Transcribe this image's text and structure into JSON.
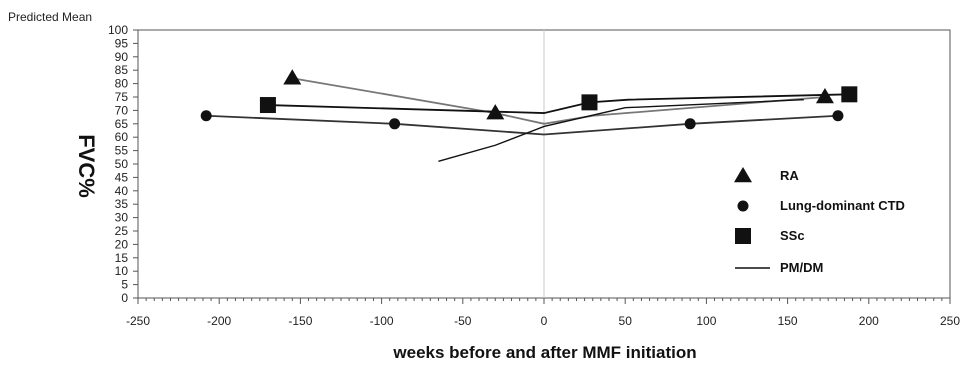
{
  "chart_data": {
    "type": "line",
    "top_label": "Predicted Mean",
    "ylabel": "FVC%",
    "xlabel": "weeks before and after MMF initiation",
    "xlim": [
      -250,
      250
    ],
    "ylim": [
      0,
      100
    ],
    "x_ticks": [
      -250,
      -200,
      -150,
      -100,
      -50,
      0,
      50,
      100,
      150,
      200,
      250
    ],
    "y_ticks": [
      0,
      5,
      10,
      15,
      20,
      25,
      30,
      35,
      40,
      45,
      50,
      55,
      60,
      65,
      70,
      75,
      80,
      85,
      90,
      95,
      100
    ],
    "reference_line_x": 0,
    "legend_position": "right",
    "series": [
      {
        "name": "RA",
        "marker": "triangle",
        "color": "#111111",
        "line_color": "#777777",
        "points": [
          [
            -155,
            82
          ],
          [
            -30,
            69
          ],
          [
            0,
            65
          ],
          [
            30,
            68
          ],
          [
            173,
            75
          ]
        ],
        "marker_points": [
          [
            -155,
            82
          ],
          [
            -30,
            69
          ],
          [
            173,
            75
          ]
        ]
      },
      {
        "name": "Lung-dominant CTD",
        "marker": "circle",
        "color": "#111111",
        "line_color": "#333333",
        "points": [
          [
            -208,
            68
          ],
          [
            -92,
            65
          ],
          [
            0,
            61
          ],
          [
            90,
            65
          ],
          [
            181,
            68
          ]
        ],
        "marker_points": [
          [
            -208,
            68
          ],
          [
            -92,
            65
          ],
          [
            90,
            65
          ],
          [
            181,
            68
          ]
        ]
      },
      {
        "name": "SSc",
        "marker": "square",
        "color": "#111111",
        "line_color": "#111111",
        "points": [
          [
            -170,
            72
          ],
          [
            0,
            69
          ],
          [
            28,
            73
          ],
          [
            52,
            74
          ],
          [
            188,
            76
          ]
        ],
        "marker_points": [
          [
            -170,
            72
          ],
          [
            28,
            73
          ],
          [
            188,
            76
          ]
        ]
      },
      {
        "name": "PM/DM",
        "marker": "none",
        "color": "#111111",
        "line_color": "#111111",
        "points": [
          [
            -65,
            51
          ],
          [
            -30,
            57
          ],
          [
            0,
            64
          ],
          [
            50,
            71
          ],
          [
            160,
            74
          ]
        ],
        "marker_points": []
      }
    ]
  }
}
